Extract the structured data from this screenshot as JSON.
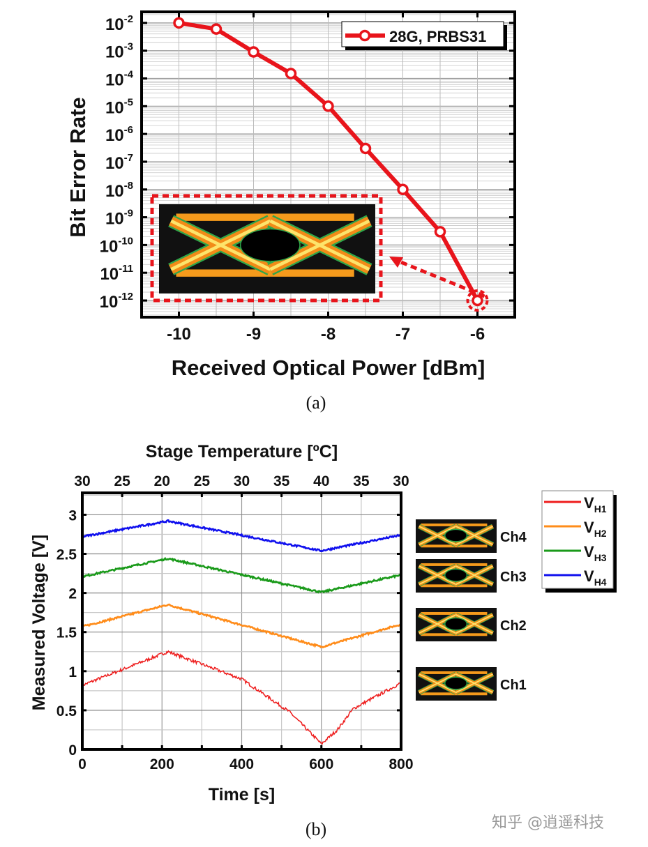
{
  "chart_data": [
    {
      "type": "line",
      "panel_label": "(a)",
      "xlabel": "Received Optical Power [dBm]",
      "ylabel": "Bit Error Rate",
      "y_scale": "log",
      "xlim": [
        -10.5,
        -5.5
      ],
      "ylim": [
        2.5e-13,
        0.025
      ],
      "x_ticks": [
        -10,
        -9,
        -8,
        -7,
        -6
      ],
      "y_tick_exponents": [
        -2,
        -3,
        -4,
        -5,
        -6,
        -7,
        -8,
        -9,
        -10,
        -11,
        -12
      ],
      "grid": true,
      "legend_position": "top-right",
      "color": "#e8141b",
      "series": [
        {
          "name": "28G, PRBS31",
          "x": [
            -10,
            -9.5,
            -9,
            -8.5,
            -8,
            -7.5,
            -7,
            -6.5,
            -6
          ],
          "y": [
            0.01,
            0.006,
            0.0009,
            0.00015,
            1e-05,
            3e-07,
            1e-08,
            3e-10,
            1e-12
          ]
        }
      ],
      "annotation": "eye diagram inset linked to the -6 dBm point"
    },
    {
      "type": "line",
      "panel_label": "(b)",
      "xlabel": "Time [s]",
      "ylabel": "Measured Voltage [V]",
      "x2label": "Stage Temperature [ºC]",
      "xlim": [
        0,
        800
      ],
      "ylim": [
        0,
        3.28
      ],
      "x_ticks": [
        0,
        200,
        400,
        600,
        800
      ],
      "y_ticks": [
        0,
        0.5,
        1,
        1.5,
        2,
        2.5,
        3
      ],
      "y_tick_labels": [
        "0",
        "0.5",
        "1",
        "1.5",
        "2",
        "2.5",
        "3"
      ],
      "x2_tick_labels": [
        "30",
        "25",
        "20",
        "25",
        "30",
        "35",
        "40",
        "35",
        "30"
      ],
      "grid": true,
      "legend_position": "right, outside",
      "series": [
        {
          "name": "VH1",
          "sub": "H1",
          "color": "#ee1c1c",
          "x": [
            0,
            215,
            400,
            520,
            600,
            640,
            680,
            800
          ],
          "y": [
            0.82,
            1.25,
            0.9,
            0.48,
            0.07,
            0.25,
            0.52,
            0.85
          ]
        },
        {
          "name": "VH2",
          "sub": "H2",
          "color": "#ff8c1a",
          "x": [
            0,
            215,
            600,
            800
          ],
          "y": [
            1.57,
            1.85,
            1.31,
            1.6
          ]
        },
        {
          "name": "VH3",
          "sub": "H3",
          "color": "#1a9a1a",
          "x": [
            0,
            215,
            600,
            800
          ],
          "y": [
            2.21,
            2.44,
            2.01,
            2.23
          ]
        },
        {
          "name": "VH4",
          "sub": "H4",
          "color": "#1010ee",
          "x": [
            0,
            215,
            600,
            800
          ],
          "y": [
            2.72,
            2.92,
            2.54,
            2.74
          ]
        }
      ],
      "eye_labels": [
        "Ch4",
        "Ch3",
        "Ch2",
        "Ch1"
      ]
    }
  ],
  "watermark": "知乎 @逍遥科技"
}
